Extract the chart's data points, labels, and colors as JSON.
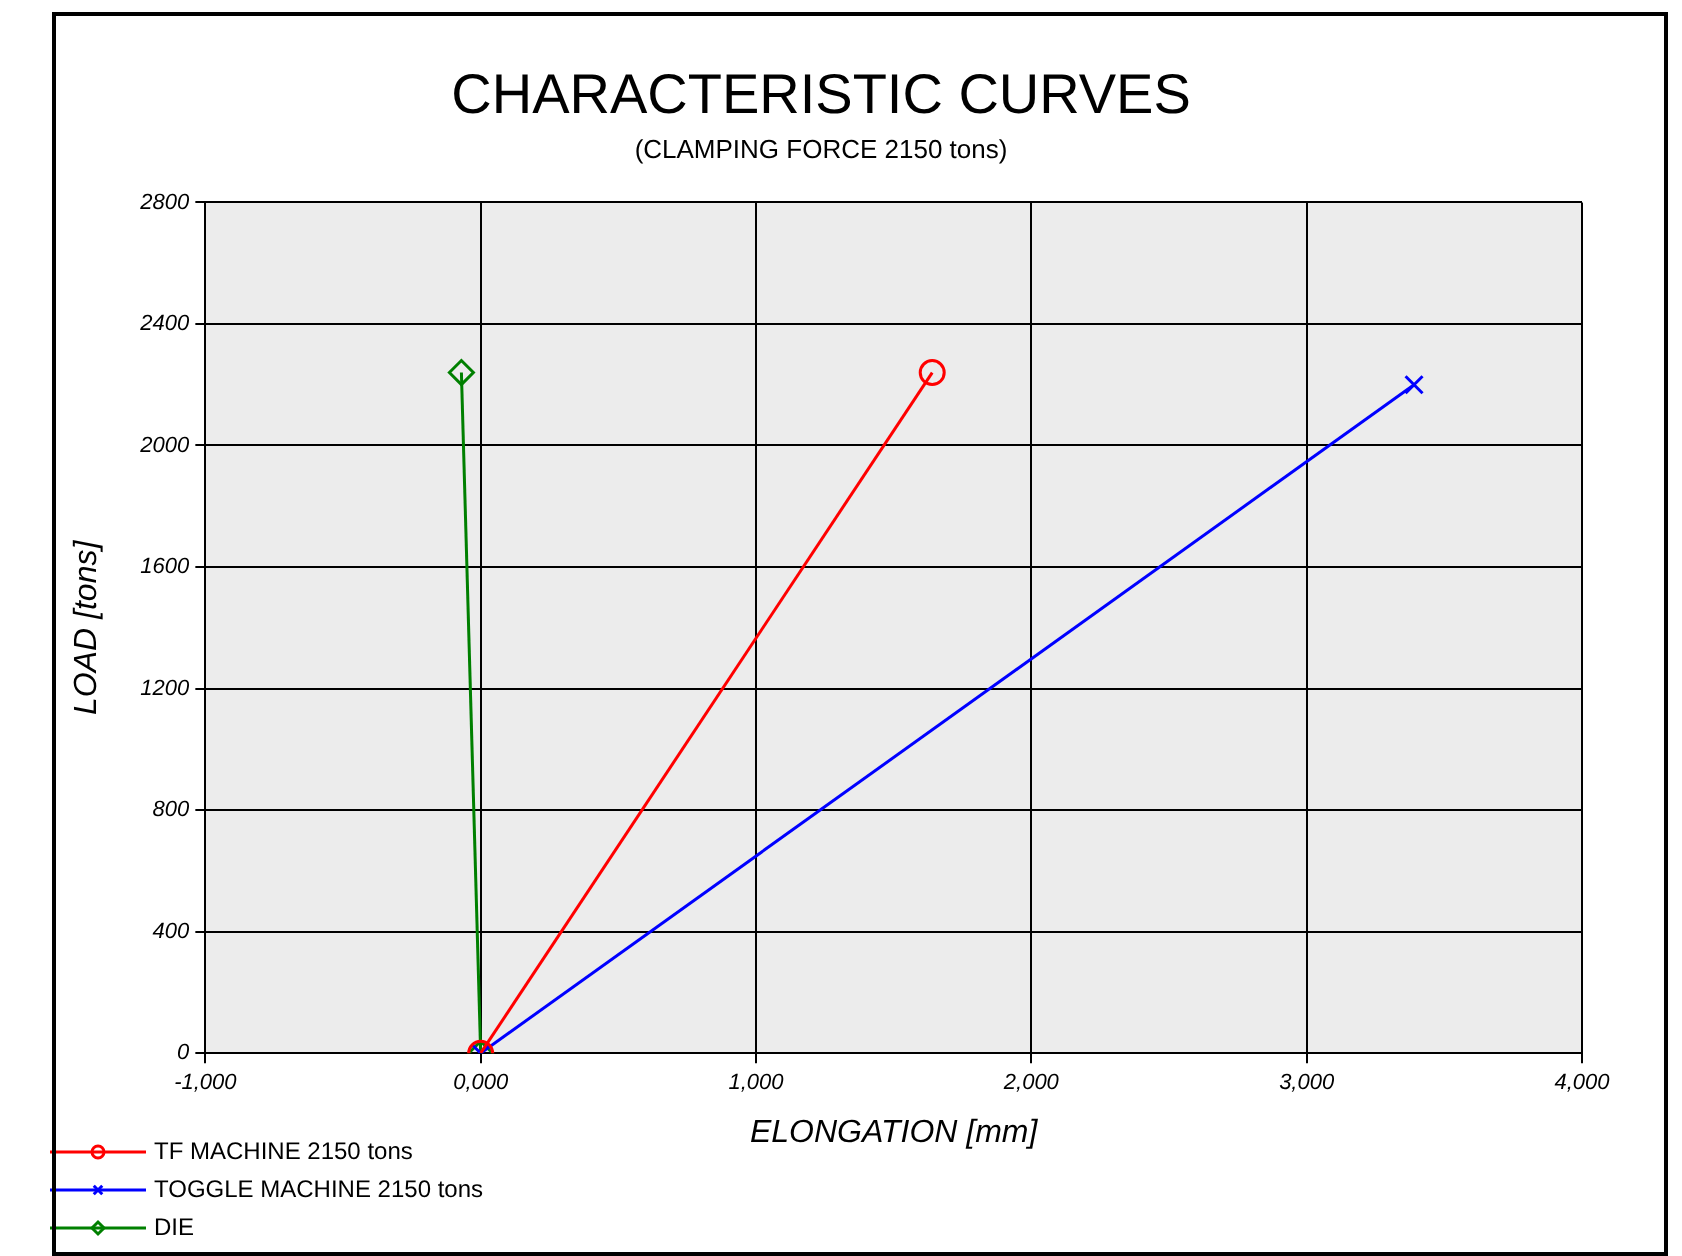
{
  "chart_data": {
    "type": "line",
    "title": "CHARACTERISTIC CURVES",
    "subtitle": "(CLAMPING FORCE 2150 tons)",
    "xlabel": "ELONGATION [mm]",
    "ylabel": "LOAD [tons]",
    "xlim": [
      -1000,
      4000
    ],
    "xticks": [
      {
        "value": -1000,
        "label": "-1,000"
      },
      {
        "value": 0,
        "label": "0,000"
      },
      {
        "value": 1000,
        "label": "1,000"
      },
      {
        "value": 2000,
        "label": "2,000"
      },
      {
        "value": 3000,
        "label": "3,000"
      },
      {
        "value": 4000,
        "label": "4,000"
      }
    ],
    "ylim": [
      0,
      2800
    ],
    "yticks": [
      0,
      400,
      800,
      1200,
      1600,
      2000,
      2400,
      2800
    ],
    "grid": true,
    "legend": "bottom left",
    "series": [
      {
        "name": "TF MACHINE 2150 tons",
        "color": "#ff0000",
        "marker": "circle",
        "x": [
          0,
          1640
        ],
        "values": [
          0,
          2240
        ]
      },
      {
        "name": "TOGGLE MACHINE 2150 tons",
        "color": "#0000ff",
        "marker": "cross",
        "x": [
          0,
          3390
        ],
        "values": [
          0,
          2200
        ]
      },
      {
        "name": "DIE",
        "color": "#008000",
        "marker": "diamond",
        "x": [
          0,
          -70
        ],
        "values": [
          0,
          2240
        ]
      }
    ]
  }
}
